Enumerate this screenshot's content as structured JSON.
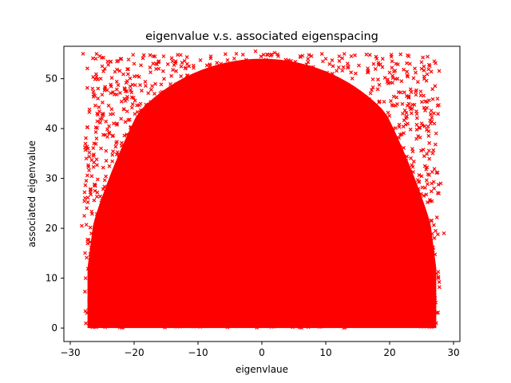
{
  "chart_data": {
    "type": "scatter",
    "title": "eigenvalue v.s. associated eigenspacing",
    "xlabel": "eigenvlaue",
    "ylabel": "associated eigenvalue",
    "xlim": [
      -31,
      31
    ],
    "ylim": [
      -2.7,
      56.5
    ],
    "xticks": [
      -30,
      -20,
      -10,
      0,
      10,
      20,
      30
    ],
    "yticks": [
      0,
      10,
      20,
      30,
      40,
      50
    ],
    "marker": "x",
    "color": "#ff0000",
    "grid": false,
    "legend": "none",
    "series": [
      {
        "values_summary": "dense cloud of points filling x in [-27.7, 27.7], y in [0, 55]; fully saturated in a semicircular region up to y≈54 at x≈0, with sparser outliers near top corners",
        "points": [
          [
            -28.0,
            55.0
          ],
          [
            -27.5,
            34.0
          ],
          [
            -27.8,
            22.5
          ],
          [
            -28.2,
            20.5
          ],
          [
            -27.6,
            10.0
          ],
          [
            -27.4,
            3.0
          ],
          [
            -26.0,
            54.0
          ],
          [
            -25.0,
            52.5
          ],
          [
            -22.0,
            54.0
          ],
          [
            -20.0,
            53.0
          ],
          [
            -17.0,
            54.5
          ],
          [
            -14.0,
            53.5
          ],
          [
            -8.0,
            54.5
          ],
          [
            -4.0,
            55.0
          ],
          [
            -1.0,
            55.5
          ],
          [
            2.0,
            55.2
          ],
          [
            6.0,
            54.5
          ],
          [
            10.0,
            54.0
          ],
          [
            14.0,
            54.5
          ],
          [
            18.0,
            54.0
          ],
          [
            21.0,
            53.0
          ],
          [
            23.0,
            54.5
          ],
          [
            25.0,
            52.0
          ],
          [
            27.0,
            53.5
          ],
          [
            27.5,
            46.0
          ],
          [
            27.0,
            41.0
          ],
          [
            28.0,
            29.0
          ],
          [
            28.5,
            19.0
          ],
          [
            27.6,
            10.0
          ],
          [
            27.3,
            1.0
          ],
          [
            -20.0,
            40.0
          ],
          [
            -15.0,
            30.0
          ],
          [
            -10.0,
            20.0
          ],
          [
            0.0,
            10.0
          ],
          [
            10.0,
            20.0
          ],
          [
            15.0,
            30.0
          ],
          [
            20.0,
            40.0
          ],
          [
            -5.0,
            45.0
          ],
          [
            5.0,
            45.0
          ],
          [
            0.0,
            0.5
          ],
          [
            -25.0,
            0.5
          ],
          [
            25.0,
            0.5
          ]
        ]
      }
    ]
  }
}
